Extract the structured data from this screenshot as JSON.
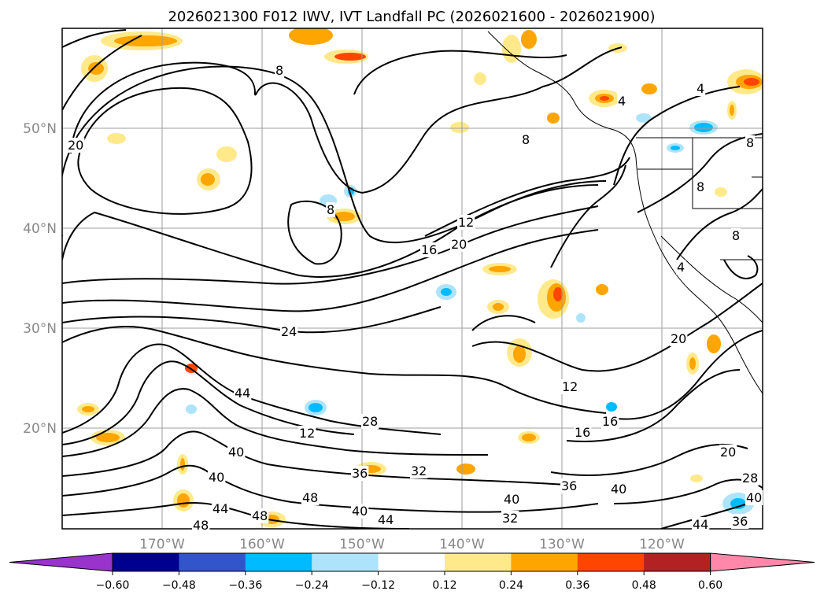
{
  "chart_data": {
    "type": "contour",
    "title": "2026021300 F012 IWV, IVT Landfall PC (2026021600 - 2026021900)",
    "map": {
      "lon_ticks": [
        -170,
        -160,
        -150,
        -140,
        -130,
        -120
      ],
      "lon_tick_labels": [
        "170°W",
        "160°W",
        "150°W",
        "140°W",
        "130°W",
        "120°W"
      ],
      "lat_ticks": [
        20,
        30,
        40,
        50
      ],
      "lat_tick_labels": [
        "20°N",
        "30°N",
        "40°N",
        "50°N"
      ],
      "lon_range": [
        -180,
        -110
      ],
      "lat_range": [
        10,
        60
      ],
      "grid": true
    },
    "iwv_contour_labels": [
      "4",
      "8",
      "12",
      "16",
      "20",
      "24",
      "28",
      "32",
      "36",
      "40",
      "44",
      "48"
    ],
    "colorbar": {
      "orientation": "horizontal",
      "extend": "both",
      "ticks": [
        "−0.60",
        "−0.48",
        "−0.36",
        "−0.24",
        "−0.12",
        "0.12",
        "0.24",
        "0.36",
        "0.48",
        "0.60"
      ],
      "colors": [
        "#9933cc",
        "#000090",
        "#3355cc",
        "#00bbff",
        "#aee4fb",
        "#ffffff",
        "#ffe98a",
        "#ffa500",
        "#ff4500",
        "#b22222",
        "#ff88aa"
      ]
    }
  }
}
